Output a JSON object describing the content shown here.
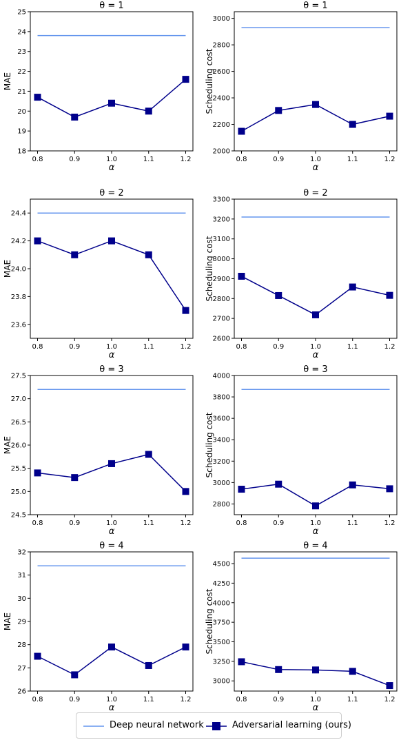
{
  "legend": {
    "baseline_label": "Deep neural network",
    "ours_label": "Adversarial learning (ours)"
  },
  "colors": {
    "baseline": "#6495ED",
    "ours": "#00008B"
  },
  "chart_data": [
    {
      "type": "line",
      "title": "θ = 1",
      "xlabel": "α",
      "ylabel": "MAE",
      "categories": [
        0.8,
        0.9,
        1.0,
        1.1,
        1.2
      ],
      "ylim": [
        18,
        25
      ],
      "yticks": [
        18,
        19,
        20,
        21,
        22,
        23,
        24,
        25
      ],
      "ytick_labels": [
        "18",
        "19",
        "20",
        "21",
        "22",
        "23",
        "24",
        "25"
      ],
      "series": [
        {
          "name": "Deep neural network",
          "values": [
            23.8,
            23.8,
            23.8,
            23.8,
            23.8
          ]
        },
        {
          "name": "Adversarial learning (ours)",
          "values": [
            20.7,
            19.7,
            20.4,
            20.0,
            21.6
          ]
        }
      ]
    },
    {
      "type": "line",
      "title": "θ = 1",
      "xlabel": "α",
      "ylabel": "Scheduling cost",
      "categories": [
        0.8,
        0.9,
        1.0,
        1.1,
        1.2
      ],
      "ylim": [
        2000,
        3050
      ],
      "yticks": [
        2000,
        2200,
        2400,
        2600,
        2800,
        3000
      ],
      "ytick_labels": [
        "2000",
        "2200",
        "2400",
        "2600",
        "2800",
        "3000"
      ],
      "series": [
        {
          "name": "Deep neural network",
          "values": [
            2930,
            2930,
            2930,
            2930,
            2930
          ]
        },
        {
          "name": "Adversarial learning (ours)",
          "values": [
            2148,
            2305,
            2350,
            2200,
            2262
          ]
        }
      ]
    },
    {
      "type": "line",
      "title": "θ = 2",
      "xlabel": "α",
      "ylabel": "MAE",
      "categories": [
        0.8,
        0.9,
        1.0,
        1.1,
        1.2
      ],
      "ylim": [
        23.5,
        24.5
      ],
      "yticks": [
        23.6,
        23.8,
        24.0,
        24.2,
        24.4
      ],
      "ytick_labels": [
        "23.6",
        "23.8",
        "24.0",
        "24.2",
        "24.4"
      ],
      "series": [
        {
          "name": "Deep neural network",
          "values": [
            24.4,
            24.4,
            24.4,
            24.4,
            24.4
          ]
        },
        {
          "name": "Adversarial learning (ours)",
          "values": [
            24.2,
            24.1,
            24.2,
            24.1,
            23.7
          ]
        }
      ]
    },
    {
      "type": "line",
      "title": "θ = 2",
      "xlabel": "α",
      "ylabel": "Scheduling cost",
      "categories": [
        0.8,
        0.9,
        1.0,
        1.1,
        1.2
      ],
      "ylim": [
        2600,
        3300
      ],
      "yticks": [
        2600,
        2700,
        2800,
        2900,
        3000,
        3100,
        3200,
        3300
      ],
      "ytick_labels": [
        "2600",
        "2700",
        "2800",
        "2900",
        "3000",
        "3100",
        "3200",
        "3300"
      ],
      "series": [
        {
          "name": "Deep neural network",
          "values": [
            3210,
            3210,
            3210,
            3210,
            3210
          ]
        },
        {
          "name": "Adversarial learning (ours)",
          "values": [
            2912,
            2815,
            2718,
            2858,
            2816
          ]
        }
      ]
    },
    {
      "type": "line",
      "title": "θ = 3",
      "xlabel": "α",
      "ylabel": "MAE",
      "categories": [
        0.8,
        0.9,
        1.0,
        1.1,
        1.2
      ],
      "ylim": [
        24.5,
        27.5
      ],
      "yticks": [
        24.5,
        25.0,
        25.5,
        26.0,
        26.5,
        27.0,
        27.5
      ],
      "ytick_labels": [
        "24.5",
        "25.0",
        "25.5",
        "26.0",
        "26.5",
        "27.0",
        "27.5"
      ],
      "series": [
        {
          "name": "Deep neural network",
          "values": [
            27.2,
            27.2,
            27.2,
            27.2,
            27.2
          ]
        },
        {
          "name": "Adversarial learning (ours)",
          "values": [
            25.4,
            25.3,
            25.6,
            25.8,
            25.0
          ]
        }
      ]
    },
    {
      "type": "line",
      "title": "θ = 3",
      "xlabel": "α",
      "ylabel": "Scheduling cost",
      "categories": [
        0.8,
        0.9,
        1.0,
        1.1,
        1.2
      ],
      "ylim": [
        2700,
        4000
      ],
      "yticks": [
        2800,
        3000,
        3200,
        3400,
        3600,
        3800,
        4000
      ],
      "ytick_labels": [
        "2800",
        "3000",
        "3200",
        "3400",
        "3600",
        "3800",
        "4000"
      ],
      "series": [
        {
          "name": "Deep neural network",
          "values": [
            3870,
            3870,
            3870,
            3870,
            3870
          ]
        },
        {
          "name": "Adversarial learning (ours)",
          "values": [
            2938,
            2985,
            2782,
            2978,
            2942
          ]
        }
      ]
    },
    {
      "type": "line",
      "title": "θ = 4",
      "xlabel": "α",
      "ylabel": "MAE",
      "categories": [
        0.8,
        0.9,
        1.0,
        1.1,
        1.2
      ],
      "ylim": [
        26,
        32
      ],
      "yticks": [
        26,
        27,
        28,
        29,
        30,
        31,
        32
      ],
      "ytick_labels": [
        "26",
        "27",
        "28",
        "29",
        "30",
        "31",
        "32"
      ],
      "series": [
        {
          "name": "Deep neural network",
          "values": [
            31.4,
            31.4,
            31.4,
            31.4,
            31.4
          ]
        },
        {
          "name": "Adversarial learning (ours)",
          "values": [
            27.5,
            26.7,
            27.9,
            27.1,
            27.9
          ]
        }
      ]
    },
    {
      "type": "line",
      "title": "θ = 4",
      "xlabel": "α",
      "ylabel": "Scheduling cost",
      "categories": [
        0.8,
        0.9,
        1.0,
        1.1,
        1.2
      ],
      "ylim": [
        2870,
        4650
      ],
      "yticks": [
        3000,
        3250,
        3500,
        3750,
        4000,
        4250,
        4500
      ],
      "ytick_labels": [
        "3000",
        "3250",
        "3500",
        "3750",
        "4000",
        "4250",
        "4500"
      ],
      "series": [
        {
          "name": "Deep neural network",
          "values": [
            4570,
            4570,
            4570,
            4570,
            4570
          ]
        },
        {
          "name": "Adversarial learning (ours)",
          "values": [
            3245,
            3145,
            3140,
            3122,
            2940
          ]
        }
      ]
    }
  ]
}
